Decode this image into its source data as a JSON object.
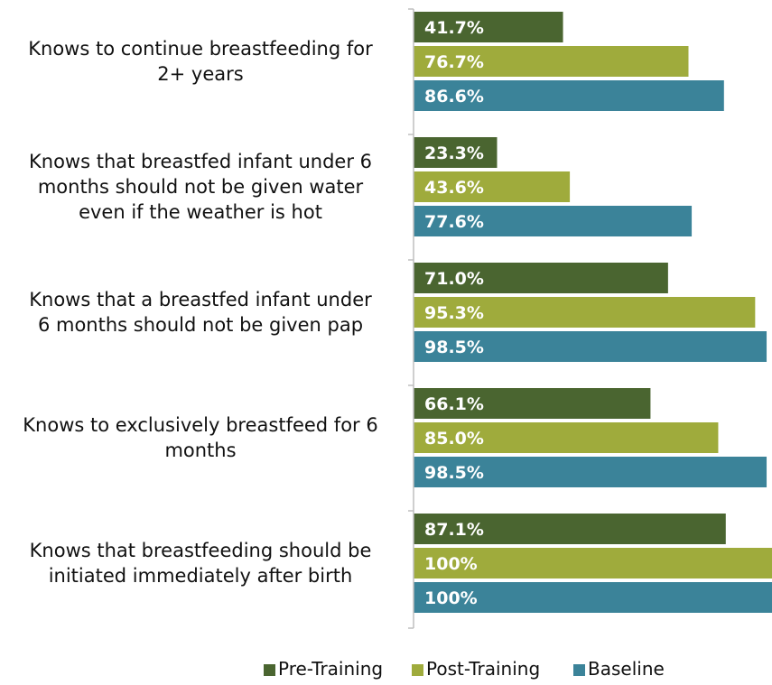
{
  "chart_data": {
    "type": "bar",
    "orientation": "horizontal",
    "title": "",
    "xlabel": "",
    "ylabel": "",
    "xlim": [
      0,
      100
    ],
    "grid": false,
    "legend_position": "bottom",
    "categories": [
      [
        "Knows to continue breastfeeding for",
        "2+ years"
      ],
      [
        "Knows that breastfed infant under 6",
        "months should not be given water",
        "even if the weather is hot"
      ],
      [
        "Knows that a breastfed infant under",
        "6 months should not be given pap"
      ],
      [
        "Knows to exclusively breastfeed for 6",
        "months"
      ],
      [
        "Knows that breastfeeding should be",
        "initiated immediately after birth"
      ]
    ],
    "series": [
      {
        "name": "Pre-Training",
        "color": "#4a6530",
        "values": [
          41.7,
          23.3,
          71.0,
          66.1,
          87.1
        ],
        "labels": [
          "41.7%",
          "23.3%",
          "71.0%",
          "66.1%",
          "87.1%"
        ]
      },
      {
        "name": "Post-Training",
        "color": "#9fab3c",
        "values": [
          76.7,
          43.6,
          95.3,
          85.0,
          100
        ],
        "labels": [
          "76.7%",
          "43.6%",
          "95.3%",
          "85.0%",
          "100%"
        ]
      },
      {
        "name": "Baseline",
        "color": "#3b8399",
        "values": [
          86.6,
          77.6,
          98.5,
          98.5,
          100
        ],
        "labels": [
          "86.6%",
          "77.6%",
          "98.5%",
          "98.5%",
          "100%"
        ]
      }
    ]
  }
}
